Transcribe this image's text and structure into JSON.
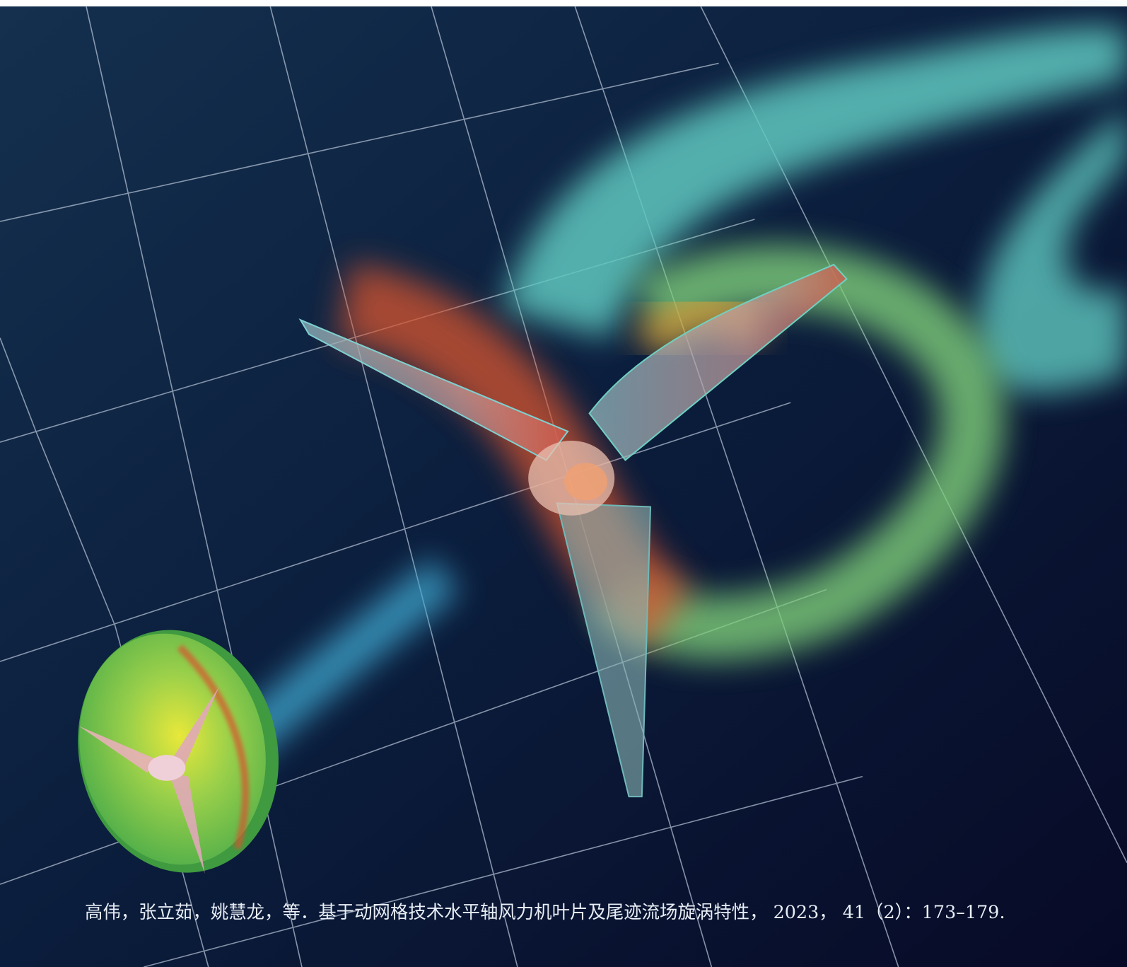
{
  "citation": "高伟，张立茹，姚慧龙，等．基于动网格技术水平轴风力机叶片及尾迹流场旋涡特性， 2023， 41（2）：173–179."
}
